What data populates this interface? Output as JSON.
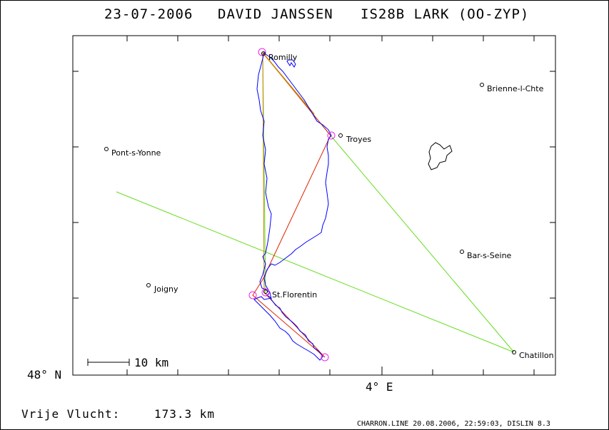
{
  "header": {
    "date": "23-07-2006",
    "pilot": "DAVID JANSSEN",
    "glider": "IS28B LARK (OO-ZYP)"
  },
  "map": {
    "towns": [
      {
        "name": "Romilly"
      },
      {
        "name": "Brienne-l-Chte"
      },
      {
        "name": "Troyes"
      },
      {
        "name": "Pont-s-Yonne"
      },
      {
        "name": "Bar-s-Seine"
      },
      {
        "name": "Joigny"
      },
      {
        "name": "St.Florentin"
      },
      {
        "name": "Chatillon"
      }
    ],
    "scale_label": "10 km",
    "lat_label": "48° N",
    "lon_label": "4° E",
    "colors": {
      "track": "#0000ff",
      "declared": "#66dd22",
      "scored": "#dd2200",
      "alt": "#cc8800",
      "turnpoint": "#ee22ee"
    }
  },
  "footer": {
    "free_flight_label": "Vrije Vlucht:",
    "distance": "173.3 km",
    "credit": "CHARRON.LINE 20.08.2006, 22:59:03, DISLIN 8.3"
  }
}
